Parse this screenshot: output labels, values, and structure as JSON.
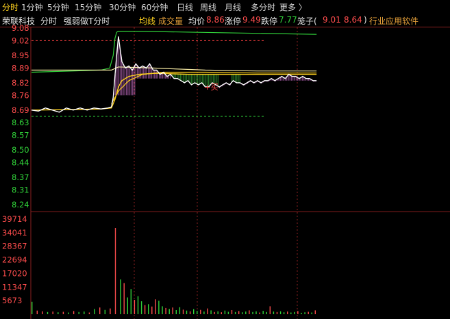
{
  "tabs": [
    {
      "label": "分时",
      "active": true
    },
    {
      "label": "1分钟"
    },
    {
      "label": "5分钟"
    },
    {
      "label": "15分钟"
    },
    {
      "label": "30分钟"
    },
    {
      "label": "60分钟"
    },
    {
      "label": "日线"
    },
    {
      "label": "周线"
    },
    {
      "label": "月线"
    },
    {
      "label": "多分时"
    },
    {
      "label": "更多 〉"
    }
  ],
  "info": {
    "stock_name": "荣联科技",
    "mode": "分时",
    "indicator": "强弱做T分时",
    "avg_line_label": "均线",
    "volume_label": "成交量",
    "avg_price_label": "均价",
    "avg_price": "8.86",
    "limit_up_label": "涨停",
    "limit_up": "9.49",
    "limit_down_label": "跌停",
    "limit_down": "7.77",
    "bollinger_label": "笼子(",
    "bollinger_high": "9.01",
    "bollinger_low": "8.64",
    "bollinger_close": ")",
    "industry": "行业应用软件"
  },
  "chart_data": [
    {
      "type": "line",
      "name": "price",
      "y_ticks": [
        "9.08",
        "9.02",
        "8.95",
        "8.89",
        "8.82",
        "8.76",
        "8.69",
        "8.63",
        "8.57",
        "8.50",
        "8.44",
        "8.37",
        "8.31",
        "8.24"
      ],
      "ylim": [
        8.24,
        9.08
      ],
      "reference_price": 8.66,
      "upper_dashed_level": 9.02,
      "lower_dashed_level": 8.66,
      "annotation": "+买",
      "annotation_at": {
        "x": 100,
        "price": 8.8
      },
      "x_count": 240,
      "price": [
        [
          0,
          8.69
        ],
        [
          4,
          8.685
        ],
        [
          8,
          8.7
        ],
        [
          12,
          8.69
        ],
        [
          16,
          8.68
        ],
        [
          20,
          8.7
        ],
        [
          24,
          8.69
        ],
        [
          28,
          8.7
        ],
        [
          32,
          8.69
        ],
        [
          36,
          8.7
        ],
        [
          40,
          8.695
        ],
        [
          44,
          8.7
        ],
        [
          46,
          8.705
        ],
        [
          47,
          8.75
        ],
        [
          48,
          8.85
        ],
        [
          49,
          8.95
        ],
        [
          50,
          9.04
        ],
        [
          51,
          8.98
        ],
        [
          52,
          8.92
        ],
        [
          54,
          8.89
        ],
        [
          56,
          8.9
        ],
        [
          58,
          8.88
        ],
        [
          60,
          8.91
        ],
        [
          62,
          8.89
        ],
        [
          64,
          8.9
        ],
        [
          66,
          8.89
        ],
        [
          68,
          8.91
        ],
        [
          70,
          8.88
        ],
        [
          72,
          8.88
        ],
        [
          74,
          8.86
        ],
        [
          76,
          8.87
        ],
        [
          78,
          8.85
        ],
        [
          80,
          8.86
        ],
        [
          82,
          8.84
        ],
        [
          84,
          8.84
        ],
        [
          86,
          8.83
        ],
        [
          88,
          8.82
        ],
        [
          90,
          8.83
        ],
        [
          92,
          8.81
        ],
        [
          94,
          8.82
        ],
        [
          96,
          8.81
        ],
        [
          98,
          8.82
        ],
        [
          100,
          8.8
        ],
        [
          102,
          8.8
        ],
        [
          104,
          8.82
        ],
        [
          106,
          8.81
        ],
        [
          108,
          8.8
        ],
        [
          110,
          8.81
        ],
        [
          112,
          8.82
        ],
        [
          114,
          8.81
        ],
        [
          116,
          8.83
        ],
        [
          118,
          8.82
        ],
        [
          120,
          8.82
        ],
        [
          122,
          8.81
        ],
        [
          124,
          8.82
        ],
        [
          126,
          8.83
        ],
        [
          128,
          8.82
        ],
        [
          130,
          8.83
        ],
        [
          132,
          8.82
        ],
        [
          134,
          8.83
        ],
        [
          136,
          8.83
        ],
        [
          138,
          8.84
        ],
        [
          140,
          8.83
        ],
        [
          142,
          8.84
        ],
        [
          144,
          8.85
        ],
        [
          146,
          8.84
        ],
        [
          148,
          8.86
        ],
        [
          150,
          8.85
        ],
        [
          152,
          8.85
        ],
        [
          154,
          8.84
        ],
        [
          156,
          8.85
        ],
        [
          158,
          8.84
        ],
        [
          160,
          8.84
        ],
        [
          162,
          8.83
        ],
        [
          164,
          8.83
        ]
      ],
      "avg": [
        [
          0,
          8.69
        ],
        [
          20,
          8.692
        ],
        [
          40,
          8.695
        ],
        [
          46,
          8.7
        ],
        [
          48,
          8.74
        ],
        [
          50,
          8.8
        ],
        [
          52,
          8.83
        ],
        [
          56,
          8.85
        ],
        [
          62,
          8.86
        ],
        [
          72,
          8.865
        ],
        [
          90,
          8.86
        ],
        [
          120,
          8.86
        ],
        [
          164,
          8.86
        ]
      ],
      "upper_band": [
        [
          0,
          8.87
        ],
        [
          20,
          8.875
        ],
        [
          40,
          8.88
        ],
        [
          45,
          8.89
        ],
        [
          47,
          8.95
        ],
        [
          48,
          9.03
        ],
        [
          49,
          9.06
        ],
        [
          50,
          9.065
        ],
        [
          60,
          9.065
        ],
        [
          164,
          9.05
        ]
      ],
      "t_strength_up": [
        [
          0,
          8.88
        ],
        [
          46,
          8.88
        ],
        [
          50,
          8.895
        ],
        [
          70,
          8.89
        ],
        [
          100,
          8.88
        ],
        [
          130,
          8.876
        ],
        [
          164,
          8.876
        ]
      ],
      "t_strength_down": [
        [
          46,
          8.72
        ],
        [
          50,
          8.78
        ],
        [
          56,
          8.83
        ],
        [
          64,
          8.86
        ],
        [
          76,
          8.87
        ],
        [
          100,
          8.87
        ],
        [
          130,
          8.866
        ],
        [
          164,
          8.866
        ]
      ],
      "magenta_columns": {
        "color": "#d276d2",
        "ranges": [
          [
            46,
            60,
            8.76
          ],
          [
            60,
            80,
            8.84
          ],
          [
            108,
            115,
            8.83
          ],
          [
            120,
            164,
            8.83
          ]
        ]
      },
      "green_columns": {
        "color": "#3cb83c",
        "ranges": [
          [
            80,
            108,
            8.86
          ],
          [
            115,
            120,
            8.86
          ]
        ]
      }
    },
    {
      "type": "bar",
      "name": "volume",
      "y_ticks": [
        "39714",
        "34041",
        "28367",
        "22694",
        "17020",
        "11347",
        "5673"
      ],
      "ylim": [
        0,
        42000
      ],
      "values": [
        [
          0,
          5200,
          "g"
        ],
        [
          3,
          1500,
          "r"
        ],
        [
          6,
          1200,
          "r"
        ],
        [
          9,
          900,
          "g"
        ],
        [
          12,
          1100,
          "r"
        ],
        [
          15,
          800,
          "g"
        ],
        [
          18,
          1000,
          "r"
        ],
        [
          21,
          700,
          "g"
        ],
        [
          24,
          1300,
          "r"
        ],
        [
          27,
          900,
          "g"
        ],
        [
          30,
          1100,
          "g"
        ],
        [
          33,
          700,
          "r"
        ],
        [
          36,
          2200,
          "g"
        ],
        [
          39,
          2800,
          "r"
        ],
        [
          42,
          1800,
          "g"
        ],
        [
          45,
          2400,
          "r"
        ],
        [
          48,
          36000,
          "r"
        ],
        [
          51,
          14500,
          "g"
        ],
        [
          53,
          13000,
          "r"
        ],
        [
          55,
          7000,
          "g"
        ],
        [
          57,
          10500,
          "g"
        ],
        [
          59,
          6000,
          "r"
        ],
        [
          61,
          7500,
          "g"
        ],
        [
          63,
          5400,
          "g"
        ],
        [
          65,
          3800,
          "r"
        ],
        [
          67,
          4200,
          "g"
        ],
        [
          69,
          3200,
          "r"
        ],
        [
          71,
          6200,
          "r"
        ],
        [
          73,
          5600,
          "g"
        ],
        [
          75,
          3300,
          "g"
        ],
        [
          77,
          2600,
          "r"
        ],
        [
          79,
          2200,
          "g"
        ],
        [
          81,
          2800,
          "r"
        ],
        [
          83,
          1700,
          "g"
        ],
        [
          85,
          2900,
          "g"
        ],
        [
          87,
          1900,
          "r"
        ],
        [
          89,
          1500,
          "g"
        ],
        [
          91,
          1200,
          "r"
        ],
        [
          93,
          2100,
          "g"
        ],
        [
          95,
          1400,
          "g"
        ],
        [
          97,
          1800,
          "r"
        ],
        [
          99,
          1100,
          "g"
        ],
        [
          101,
          2400,
          "r"
        ],
        [
          103,
          1600,
          "g"
        ],
        [
          105,
          900,
          "r"
        ],
        [
          107,
          1200,
          "g"
        ],
        [
          109,
          800,
          "r"
        ],
        [
          111,
          1500,
          "g"
        ],
        [
          113,
          1000,
          "g"
        ],
        [
          115,
          1700,
          "r"
        ],
        [
          117,
          900,
          "g"
        ],
        [
          119,
          1300,
          "r"
        ],
        [
          121,
          800,
          "g"
        ],
        [
          123,
          1100,
          "g"
        ],
        [
          125,
          1600,
          "r"
        ],
        [
          127,
          900,
          "g"
        ],
        [
          129,
          1200,
          "g"
        ],
        [
          131,
          700,
          "r"
        ],
        [
          133,
          1400,
          "g"
        ],
        [
          135,
          900,
          "g"
        ],
        [
          137,
          3300,
          "r"
        ],
        [
          139,
          1100,
          "g"
        ],
        [
          141,
          900,
          "r"
        ],
        [
          143,
          1200,
          "g"
        ],
        [
          145,
          800,
          "g"
        ],
        [
          147,
          1100,
          "r"
        ],
        [
          149,
          700,
          "g"
        ],
        [
          151,
          900,
          "g"
        ],
        [
          153,
          1300,
          "r"
        ],
        [
          155,
          600,
          "g"
        ],
        [
          157,
          800,
          "g"
        ],
        [
          159,
          1000,
          "r"
        ],
        [
          161,
          700,
          "g"
        ],
        [
          163,
          1600,
          "r"
        ]
      ]
    }
  ],
  "colors": {
    "up": "#ff4d4d",
    "down": "#31d43a",
    "price": "#ffffff",
    "avg": "#ffd21f",
    "band": "#31d43a",
    "grid": "#8b1f1f"
  }
}
